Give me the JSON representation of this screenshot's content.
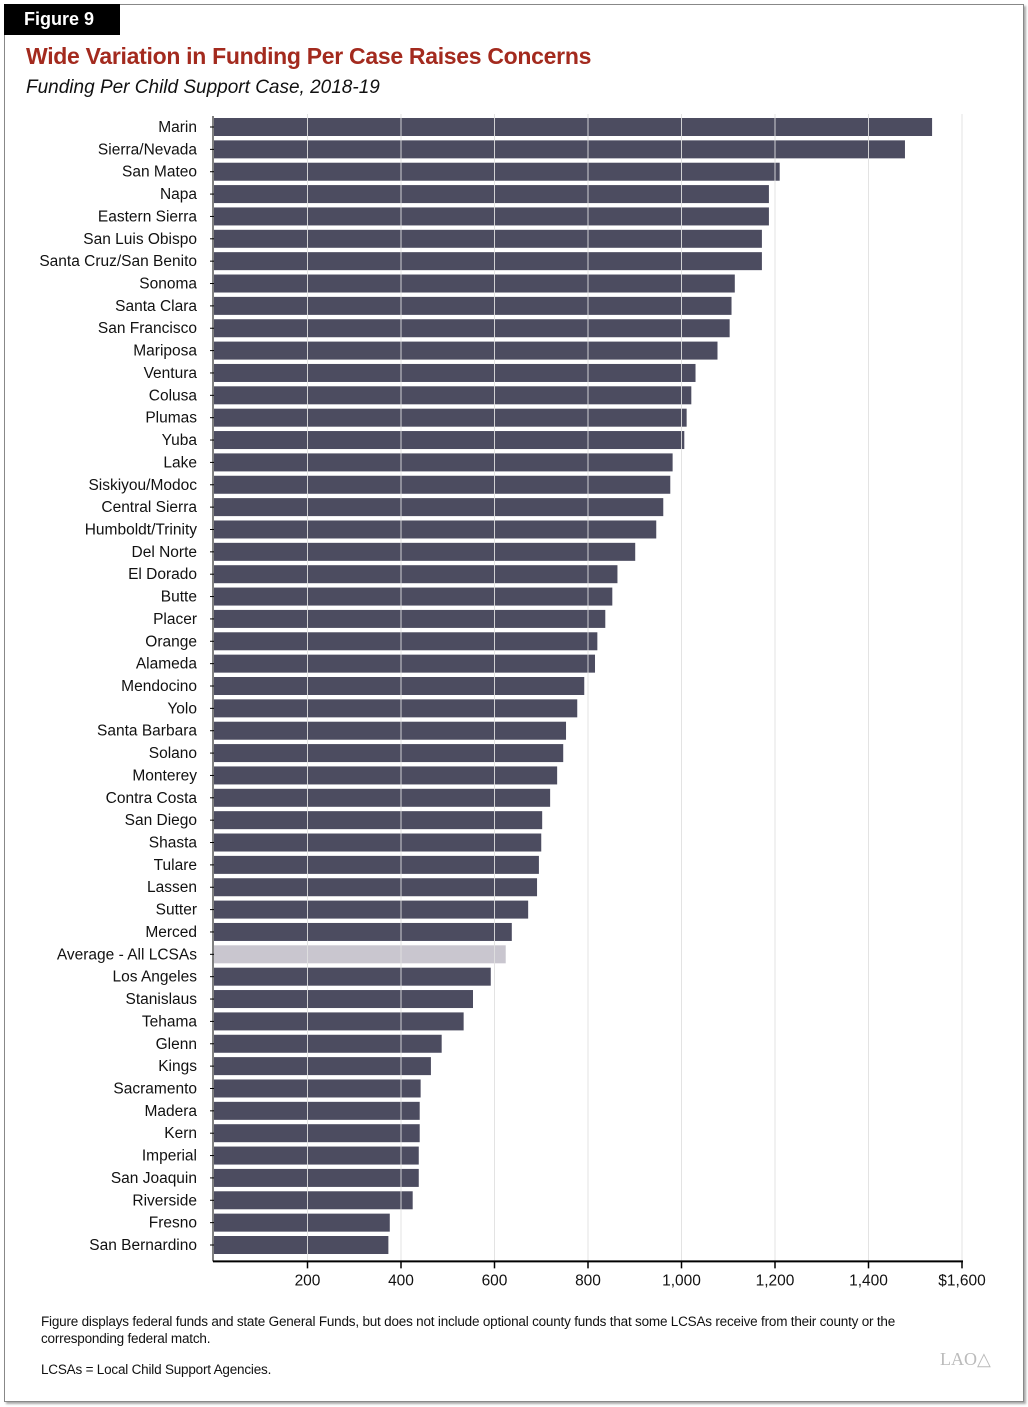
{
  "figure_label": "Figure 9",
  "title": "Wide Variation in Funding Per Case Raises Concerns",
  "subtitle": "Funding Per Child Support Case, 2018-19",
  "notes": [
    "Figure displays federal funds and state General Funds, but does not include optional county funds that some LCSAs receive from their county or the corresponding federal match.",
    "LCSAs = Local Child Support Agencies."
  ],
  "logo": "LAO",
  "colors": {
    "bar": "#4c4c60",
    "highlight": "#c9c6cf",
    "title": "#a32a1e"
  },
  "chart_data": {
    "type": "bar",
    "orientation": "horizontal",
    "title": "Funding Per Child Support Case, 2018-19",
    "xlabel": "",
    "ylabel": "",
    "xlim": [
      0,
      1600
    ],
    "xticks": [
      200,
      400,
      600,
      800,
      1000,
      1200,
      1400,
      1600
    ],
    "xtick_labels": [
      "200",
      "400",
      "600",
      "800",
      "1,000",
      "1,200",
      "1,400",
      "$1,600"
    ],
    "grid": true,
    "highlight_category": "Average - All LCSAs",
    "categories": [
      "Marin",
      "Sierra/Nevada",
      "San Mateo",
      "Napa",
      "Eastern Sierra",
      "San Luis Obispo",
      "Santa Cruz/San Benito",
      "Sonoma",
      "Santa Clara",
      "San Francisco",
      "Mariposa",
      "Ventura",
      "Colusa",
      "Plumas",
      "Yuba",
      "Lake",
      "Siskiyou/Modoc",
      "Central Sierra",
      "Humboldt/Trinity",
      "Del Norte",
      "El Dorado",
      "Butte",
      "Placer",
      "Orange",
      "Alameda",
      "Mendocino",
      "Yolo",
      "Santa Barbara",
      "Solano",
      "Monterey",
      "Contra Costa",
      "San Diego",
      "Shasta",
      "Tulare",
      "Lassen",
      "Sutter",
      "Merced",
      "Average - All LCSAs",
      "Los Angeles",
      "Stanislaus",
      "Tehama",
      "Glenn",
      "Kings",
      "Sacramento",
      "Madera",
      "Kern",
      "Imperial",
      "San Joaquin",
      "Riverside",
      "Fresno",
      "San Bernardino"
    ],
    "values": [
      1536,
      1478,
      1210,
      1187,
      1187,
      1172,
      1172,
      1114,
      1107,
      1103,
      1077,
      1030,
      1021,
      1011,
      1006,
      981,
      976,
      961,
      946,
      901,
      863,
      852,
      837,
      820,
      815,
      792,
      777,
      753,
      747,
      734,
      719,
      702,
      700,
      695,
      691,
      672,
      637,
      624,
      592,
      554,
      534,
      487,
      464,
      442,
      440,
      440,
      438,
      438,
      425,
      376,
      373
    ]
  }
}
